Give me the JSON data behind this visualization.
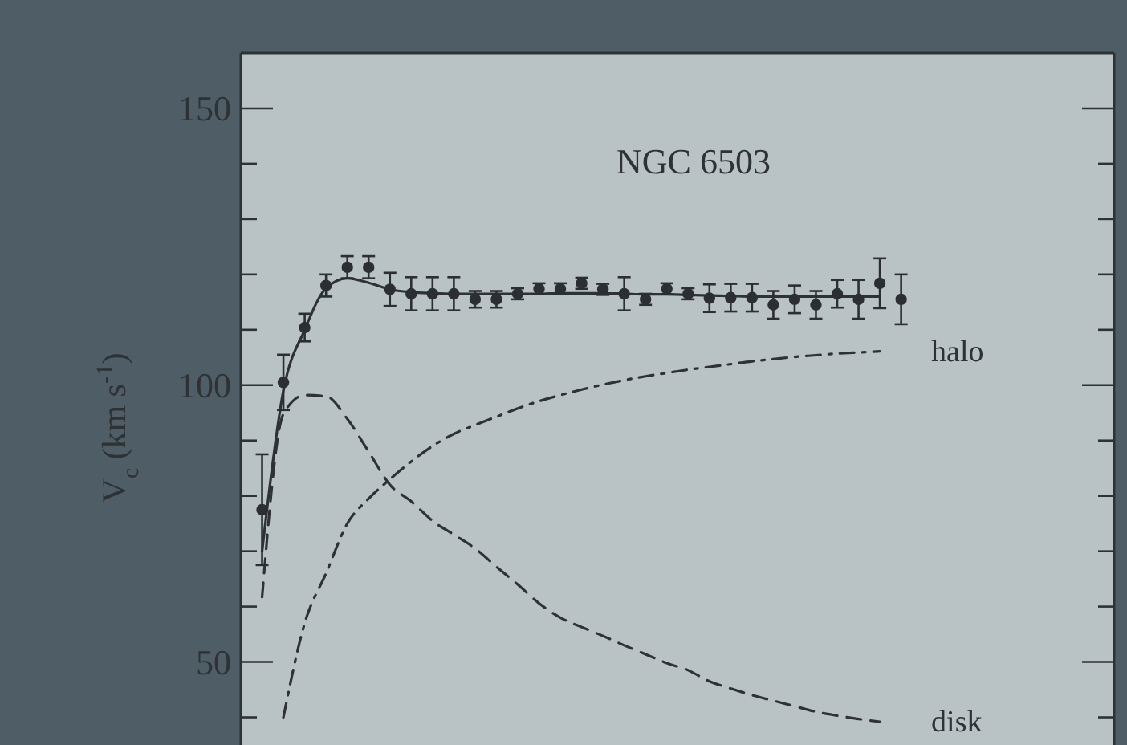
{
  "chart_data": {
    "type": "scatter",
    "title": "NGC 6503",
    "ylabel": "V$_{c}$ (km s$^{-1}$)",
    "categories": [
      null,
      null,
      null,
      null,
      null,
      null,
      null,
      null,
      null,
      null,
      null,
      null,
      null,
      null,
      null,
      null,
      null,
      null,
      null,
      null,
      null,
      null,
      null,
      null,
      null,
      null,
      null,
      null,
      null,
      null,
      null,
      null,
      null,
      null,
      null,
      null,
      null,
      null,
      null,
      null,
      null,
      null
    ],
    "ylim": [
      35,
      160
    ],
    "yticks": [
      {
        "value": 40,
        "label": null
      },
      50,
      {
        "value": 60,
        "label": null
      },
      {
        "value": 70,
        "label": null
      },
      {
        "value": 80,
        "label": null
      },
      {
        "value": 90,
        "label": null
      },
      100,
      {
        "value": 110,
        "label": null
      },
      {
        "value": 120,
        "label": null
      },
      {
        "value": 130,
        "label": null
      },
      {
        "value": 140,
        "label": null
      },
      150
    ],
    "tick_labels": "y",
    "series": [
      {
        "type": "line",
        "color": "#2e3234",
        "line_style": "solid",
        "values": [
          null,
          70,
          99,
          110,
          117.5,
          119.3,
          118.5,
          117.3,
          116.8,
          116.6,
          116.5,
          116.5,
          116.5,
          116.5,
          116.5,
          116.6,
          116.6,
          116.6,
          116.5,
          116.4,
          116.4,
          116.3,
          116.2,
          116.1,
          116,
          116,
          116,
          116,
          116,
          116,
          116,
          null,
          null,
          null,
          null,
          null,
          null,
          null,
          null,
          null,
          null,
          null
        ]
      },
      {
        "type": "line",
        "name": "disk",
        "color": "#2e3234",
        "line_style": "dashed",
        "values": [
          null,
          61.7,
          94.8,
          98.2,
          98,
          93.9,
          88,
          82,
          79,
          75.5,
          73,
          70.5,
          67.2,
          64,
          60.6,
          58,
          56.3,
          54.7,
          53,
          51.4,
          49.8,
          48.5,
          46.5,
          45.2,
          44,
          43,
          42,
          41,
          40.3,
          39.7,
          39.2,
          null,
          null,
          null,
          null,
          null,
          null,
          null,
          null,
          null,
          null,
          null
        ]
      },
      {
        "type": "line",
        "name": "halo",
        "color": "#2e3234",
        "line_style": "dashdot",
        "values": [
          null,
          null,
          40,
          57,
          66,
          75,
          79.5,
          83,
          86.2,
          89,
          91.2,
          92.8,
          94.3,
          95.8,
          97.1,
          98.2,
          99.2,
          100.1,
          100.9,
          101.6,
          102.2,
          102.8,
          103.3,
          103.8,
          104.3,
          104.7,
          105.1,
          105.4,
          105.7,
          105.9,
          106.1,
          null,
          null,
          null,
          null,
          null,
          null,
          null,
          null,
          null,
          null,
          null
        ]
      },
      {
        "color": "#2b2f31",
        "marker": "circle",
        "values": [
          null,
          77.5,
          100.5,
          110.4,
          118,
          121.3,
          121.3,
          117.3,
          116.5,
          116.5,
          116.5,
          115.5,
          115.5,
          116.5,
          117.4,
          117.4,
          118.4,
          117.3,
          116.5,
          115.5,
          117.4,
          116.5,
          115.7,
          115.8,
          115.8,
          114.5,
          115.5,
          114.5,
          116.5,
          115.5,
          118.4,
          115.5,
          null,
          null,
          null,
          null,
          null,
          null,
          null,
          null,
          null,
          null
        ],
        "errors": [
          null,
          10,
          5,
          2.5,
          2,
          2,
          2,
          3,
          3,
          3,
          3,
          1.5,
          1.5,
          1,
          1,
          1,
          1,
          1,
          3,
          1,
          1,
          1,
          2.5,
          2.5,
          2.5,
          2.5,
          2.5,
          2.5,
          2.5,
          3.5,
          4.5,
          4.5,
          null,
          null,
          null,
          null,
          null,
          null,
          null,
          null,
          null,
          null
        ]
      }
    ]
  }
}
